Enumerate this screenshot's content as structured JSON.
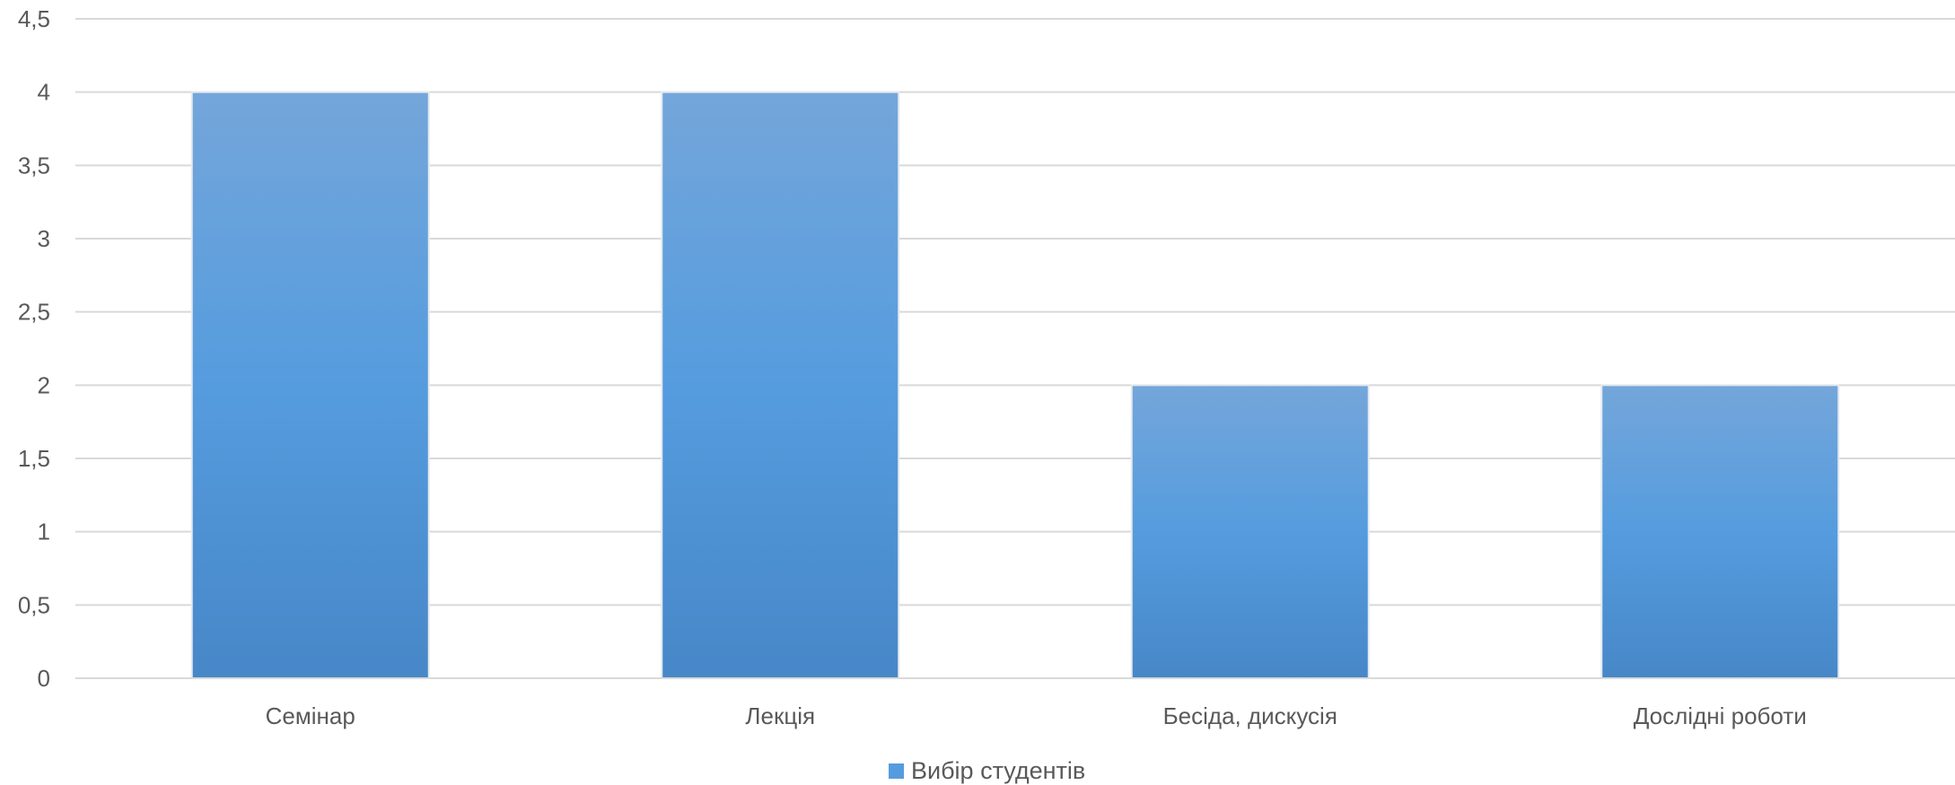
{
  "chart_data": {
    "type": "bar",
    "categories": [
      "Семінар",
      "Лекція",
      "Бесіда, дискусія",
      "Дослідні роботи"
    ],
    "series": [
      {
        "name": "Вибір студентів",
        "values": [
          4,
          4,
          2,
          2
        ]
      }
    ],
    "yticks": [
      "0",
      "0,5",
      "1",
      "1,5",
      "2",
      "2,5",
      "3",
      "3,5",
      "4",
      "4,5"
    ],
    "ylim": [
      0,
      4.5
    ],
    "grid": true,
    "legend_position": "bottom",
    "colors": {
      "bar_top": "#74A6DA",
      "bar_mid": "#559CDE",
      "bar_bottom": "#4787C8",
      "grid": "#D9D9D9",
      "axis": "#D9D9D9",
      "text": "#595959"
    }
  }
}
